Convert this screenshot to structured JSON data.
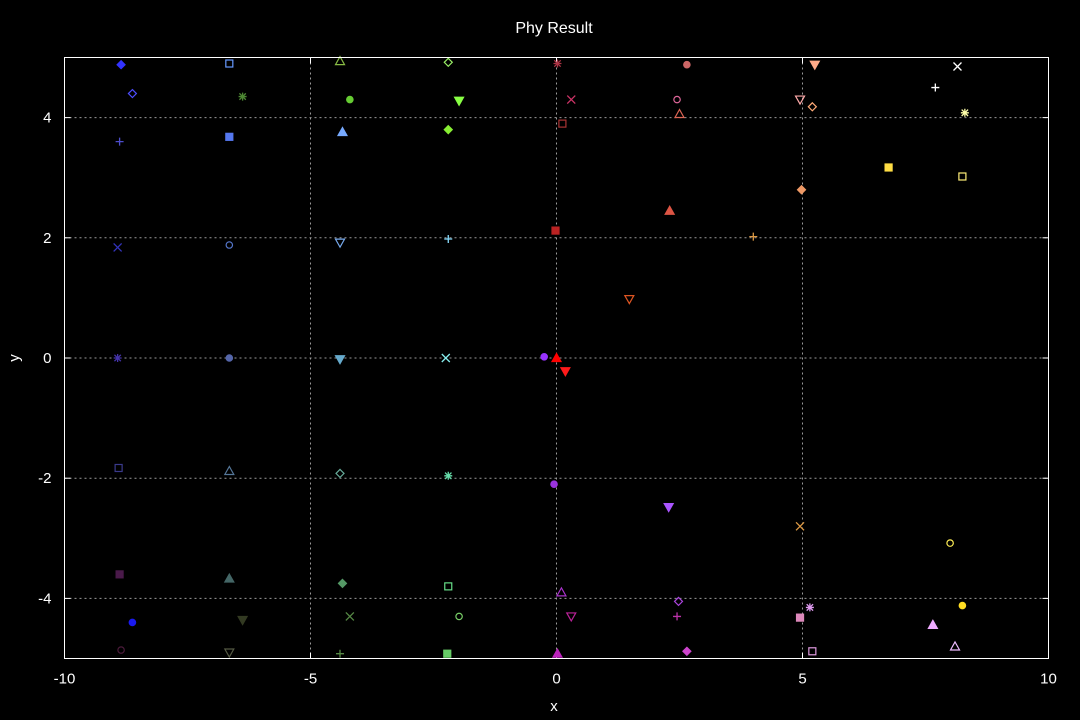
{
  "chart_data": {
    "type": "scatter",
    "title": "Phy Result",
    "xlabel": "x",
    "ylabel": "y",
    "xlim": [
      -10,
      10
    ],
    "ylim": [
      -5,
      5
    ],
    "grid": true,
    "xticks": [
      -10,
      -5,
      0,
      5,
      10
    ],
    "yticks": [
      -4,
      -2,
      0,
      2,
      4
    ],
    "points": [
      {
        "x": 0.0,
        "y": 0.0,
        "marker": "triangle-filled",
        "color": "#ff0000"
      },
      {
        "x": 0.18,
        "y": -0.22,
        "marker": "triangle-down-filled",
        "color": "#ff1a1a"
      },
      {
        "x": -0.25,
        "y": 0.02,
        "marker": "circle-filled",
        "color": "#9933ff"
      },
      {
        "x": -8.85,
        "y": 4.88,
        "marker": "diamond-filled",
        "color": "#3333ff"
      },
      {
        "x": -8.62,
        "y": 4.4,
        "marker": "diamond",
        "color": "#4d4dff"
      },
      {
        "x": -8.88,
        "y": 3.6,
        "marker": "plus",
        "color": "#4d4dcc"
      },
      {
        "x": -8.92,
        "y": 1.84,
        "marker": "cross",
        "color": "#3333bb"
      },
      {
        "x": -8.92,
        "y": 0.0,
        "marker": "asterisk",
        "color": "#4433aa"
      },
      {
        "x": -8.9,
        "y": -1.83,
        "marker": "square",
        "color": "#3a3a8c"
      },
      {
        "x": -8.88,
        "y": -3.6,
        "marker": "square-filled",
        "color": "#4a1a4a"
      },
      {
        "x": -8.62,
        "y": -4.4,
        "marker": "circle-filled",
        "color": "#1a1aee"
      },
      {
        "x": -8.85,
        "y": -4.86,
        "marker": "circle",
        "color": "#4a1a3a"
      },
      {
        "x": -6.65,
        "y": 4.9,
        "marker": "square",
        "color": "#6699ff"
      },
      {
        "x": -6.65,
        "y": 3.68,
        "marker": "square-filled",
        "color": "#5577ee"
      },
      {
        "x": -6.65,
        "y": 1.88,
        "marker": "circle",
        "color": "#5577cc"
      },
      {
        "x": -6.65,
        "y": 0.0,
        "marker": "circle-filled",
        "color": "#5566aa"
      },
      {
        "x": -6.65,
        "y": -1.88,
        "marker": "triangle",
        "color": "#557799"
      },
      {
        "x": -6.65,
        "y": -3.67,
        "marker": "triangle-filled",
        "color": "#446666"
      },
      {
        "x": -6.38,
        "y": -4.36,
        "marker": "triangle-down-filled",
        "color": "#333a22"
      },
      {
        "x": -6.65,
        "y": -4.9,
        "marker": "triangle-down",
        "color": "#555a44"
      },
      {
        "x": -6.38,
        "y": 4.35,
        "marker": "asterisk",
        "color": "#4d8833"
      },
      {
        "x": -4.4,
        "y": 4.94,
        "marker": "triangle",
        "color": "#88bb44"
      },
      {
        "x": -4.35,
        "y": 3.76,
        "marker": "triangle-filled",
        "color": "#77aaff"
      },
      {
        "x": -4.4,
        "y": 1.92,
        "marker": "triangle-down",
        "color": "#77aaee"
      },
      {
        "x": -4.4,
        "y": -0.02,
        "marker": "triangle-down-filled",
        "color": "#66aacc"
      },
      {
        "x": -4.4,
        "y": -1.92,
        "marker": "diamond",
        "color": "#66aa99"
      },
      {
        "x": -4.35,
        "y": -3.75,
        "marker": "diamond-filled",
        "color": "#559966"
      },
      {
        "x": -4.2,
        "y": -4.3,
        "marker": "cross",
        "color": "#558844"
      },
      {
        "x": -4.4,
        "y": -4.92,
        "marker": "plus",
        "color": "#558844"
      },
      {
        "x": -4.2,
        "y": 4.3,
        "marker": "circle-filled",
        "color": "#66cc33"
      },
      {
        "x": -2.2,
        "y": 4.92,
        "marker": "diamond",
        "color": "#99ee66"
      },
      {
        "x": -2.2,
        "y": 3.8,
        "marker": "diamond-filled",
        "color": "#88ee33"
      },
      {
        "x": -1.98,
        "y": 4.28,
        "marker": "triangle-down-filled",
        "color": "#88ff44"
      },
      {
        "x": -2.2,
        "y": 1.98,
        "marker": "plus",
        "color": "#88ddff"
      },
      {
        "x": -2.25,
        "y": 0.0,
        "marker": "cross",
        "color": "#88eeee"
      },
      {
        "x": -2.2,
        "y": -1.96,
        "marker": "asterisk",
        "color": "#66ddaa"
      },
      {
        "x": -2.2,
        "y": -3.8,
        "marker": "square",
        "color": "#66dd88"
      },
      {
        "x": -1.98,
        "y": -4.3,
        "marker": "circle",
        "color": "#77cc66"
      },
      {
        "x": -2.22,
        "y": -4.92,
        "marker": "square-filled",
        "color": "#66cc66"
      },
      {
        "x": 0.02,
        "y": 4.9,
        "marker": "asterisk",
        "color": "#aa3344"
      },
      {
        "x": 0.3,
        "y": 4.3,
        "marker": "cross",
        "color": "#cc3366"
      },
      {
        "x": 0.12,
        "y": 3.9,
        "marker": "square",
        "color": "#aa3333"
      },
      {
        "x": -0.02,
        "y": 2.12,
        "marker": "square-filled",
        "color": "#bb2222"
      },
      {
        "x": -0.05,
        "y": -2.1,
        "marker": "circle-filled",
        "color": "#9933dd"
      },
      {
        "x": 0.1,
        "y": -3.9,
        "marker": "triangle",
        "color": "#aa33cc"
      },
      {
        "x": 0.3,
        "y": -4.3,
        "marker": "triangle-down",
        "color": "#bb2299"
      },
      {
        "x": 0.02,
        "y": -4.92,
        "marker": "triangle-filled",
        "color": "#bb22bb"
      },
      {
        "x": 2.65,
        "y": 4.88,
        "marker": "circle-filled",
        "color": "#cc6666"
      },
      {
        "x": 2.45,
        "y": 4.3,
        "marker": "circle",
        "color": "#dd6699"
      },
      {
        "x": 2.5,
        "y": 4.06,
        "marker": "triangle",
        "color": "#dd6655"
      },
      {
        "x": 2.3,
        "y": 2.45,
        "marker": "triangle-filled",
        "color": "#dd5544"
      },
      {
        "x": 1.48,
        "y": 0.98,
        "marker": "triangle-down",
        "color": "#dd5522"
      },
      {
        "x": 2.28,
        "y": -2.48,
        "marker": "triangle-down-filled",
        "color": "#aa55ff"
      },
      {
        "x": 2.48,
        "y": -4.05,
        "marker": "diamond",
        "color": "#aa44dd"
      },
      {
        "x": 2.45,
        "y": -4.3,
        "marker": "plus",
        "color": "#bb33aa"
      },
      {
        "x": 2.65,
        "y": -4.88,
        "marker": "diamond-filled",
        "color": "#cc44cc"
      },
      {
        "x": 5.25,
        "y": 4.88,
        "marker": "triangle-down-filled",
        "color": "#ffaa88"
      },
      {
        "x": 4.95,
        "y": 4.3,
        "marker": "triangle-down",
        "color": "#ffaaaa"
      },
      {
        "x": 5.2,
        "y": 4.18,
        "marker": "diamond",
        "color": "#ffaa77"
      },
      {
        "x": 4.98,
        "y": 2.8,
        "marker": "diamond-filled",
        "color": "#ee9966"
      },
      {
        "x": 4.0,
        "y": 2.02,
        "marker": "plus",
        "color": "#dd9944"
      },
      {
        "x": 4.95,
        "y": -2.8,
        "marker": "cross",
        "color": "#dd9944"
      },
      {
        "x": 4.95,
        "y": -4.32,
        "marker": "square-filled",
        "color": "#dd88bb"
      },
      {
        "x": 5.15,
        "y": -4.15,
        "marker": "asterisk",
        "color": "#dd99ee"
      },
      {
        "x": 5.2,
        "y": -4.88,
        "marker": "square",
        "color": "#dd99dd"
      },
      {
        "x": 8.15,
        "y": 4.85,
        "marker": "cross",
        "color": "#ffffff"
      },
      {
        "x": 7.7,
        "y": 4.5,
        "marker": "plus",
        "color": "#ffffff"
      },
      {
        "x": 8.3,
        "y": 4.08,
        "marker": "asterisk",
        "color": "#ffffaa"
      },
      {
        "x": 6.75,
        "y": 3.17,
        "marker": "square-filled",
        "color": "#ffdd44"
      },
      {
        "x": 8.25,
        "y": 3.02,
        "marker": "square",
        "color": "#ffee77"
      },
      {
        "x": 8.0,
        "y": -3.08,
        "marker": "circle",
        "color": "#ffee55"
      },
      {
        "x": 8.25,
        "y": -4.12,
        "marker": "circle-filled",
        "color": "#ffdd22"
      },
      {
        "x": 7.65,
        "y": -4.44,
        "marker": "triangle-filled",
        "color": "#eeaaff"
      },
      {
        "x": 8.1,
        "y": -4.8,
        "marker": "triangle",
        "color": "#eebbff"
      }
    ]
  }
}
